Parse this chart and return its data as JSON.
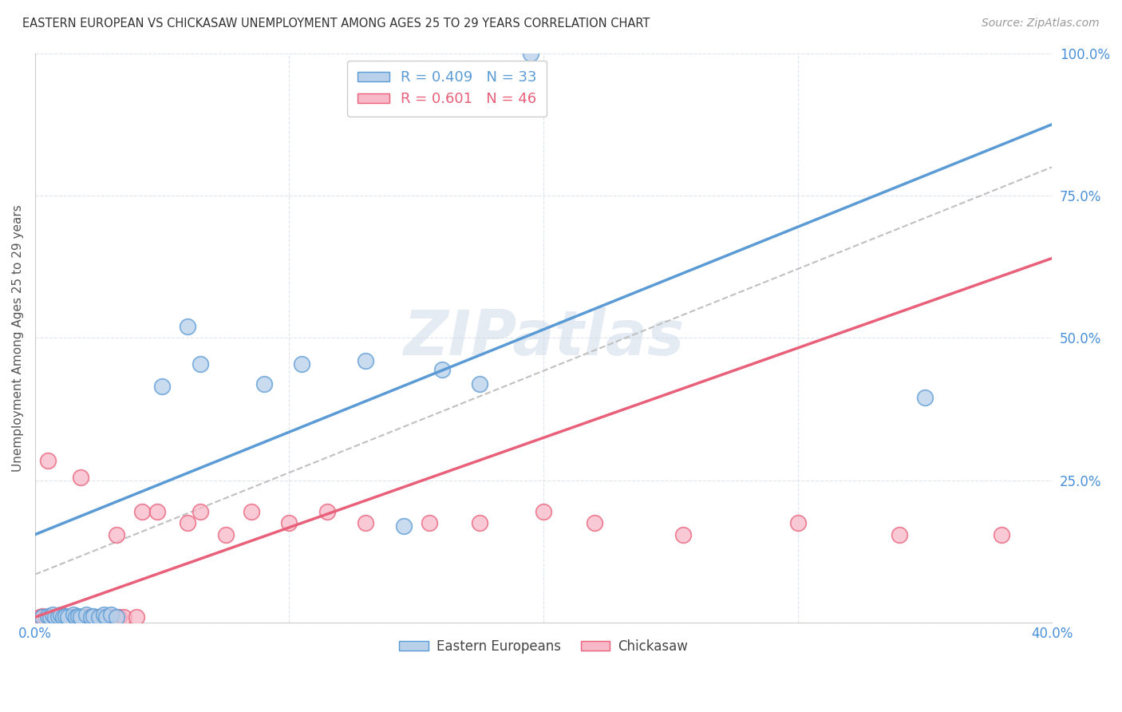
{
  "title": "EASTERN EUROPEAN VS CHICKASAW UNEMPLOYMENT AMONG AGES 25 TO 29 YEARS CORRELATION CHART",
  "source": "Source: ZipAtlas.com",
  "ylabel": "Unemployment Among Ages 25 to 29 years",
  "xlim": [
    0.0,
    0.4
  ],
  "ylim": [
    0.0,
    1.0
  ],
  "xtick_positions": [
    0.0,
    0.1,
    0.2,
    0.3,
    0.4
  ],
  "xticklabels": [
    "0.0%",
    "",
    "",
    "",
    "40.0%"
  ],
  "ytick_positions": [
    0.0,
    0.25,
    0.5,
    0.75,
    1.0
  ],
  "yticklabels": [
    "",
    "25.0%",
    "50.0%",
    "75.0%",
    "100.0%"
  ],
  "blue_fill": "#b8d0ea",
  "pink_fill": "#f7b8c8",
  "blue_edge": "#5b9bd5",
  "pink_edge": "#e8607a",
  "dashed_line_color": "#c0c0c0",
  "legend_blue_R": "0.409",
  "legend_blue_N": "33",
  "legend_pink_R": "0.601",
  "legend_pink_N": "46",
  "watermark": "ZIPatlas",
  "blue_scatter_x": [
    0.003,
    0.005,
    0.006,
    0.007,
    0.008,
    0.009,
    0.01,
    0.011,
    0.012,
    0.013,
    0.015,
    0.016,
    0.017,
    0.018,
    0.02,
    0.022,
    0.023,
    0.025,
    0.027,
    0.028,
    0.03,
    0.032,
    0.05,
    0.06,
    0.065,
    0.09,
    0.105,
    0.13,
    0.145,
    0.16,
    0.175,
    0.195,
    0.35
  ],
  "blue_scatter_y": [
    0.01,
    0.012,
    0.01,
    0.015,
    0.01,
    0.012,
    0.015,
    0.01,
    0.012,
    0.01,
    0.015,
    0.01,
    0.012,
    0.01,
    0.015,
    0.01,
    0.012,
    0.01,
    0.015,
    0.01,
    0.015,
    0.01,
    0.415,
    0.52,
    0.455,
    0.42,
    0.455,
    0.46,
    0.17,
    0.445,
    0.42,
    1.0,
    0.395
  ],
  "pink_scatter_x": [
    0.002,
    0.003,
    0.004,
    0.005,
    0.006,
    0.007,
    0.008,
    0.009,
    0.01,
    0.011,
    0.012,
    0.013,
    0.014,
    0.015,
    0.016,
    0.017,
    0.018,
    0.019,
    0.02,
    0.021,
    0.022,
    0.023,
    0.025,
    0.027,
    0.03,
    0.032,
    0.033,
    0.035,
    0.04,
    0.042,
    0.048,
    0.06,
    0.065,
    0.075,
    0.085,
    0.1,
    0.115,
    0.13,
    0.155,
    0.175,
    0.2,
    0.22,
    0.255,
    0.3,
    0.34,
    0.38
  ],
  "pink_scatter_y": [
    0.01,
    0.012,
    0.01,
    0.285,
    0.01,
    0.01,
    0.01,
    0.01,
    0.01,
    0.01,
    0.01,
    0.01,
    0.01,
    0.01,
    0.01,
    0.01,
    0.255,
    0.01,
    0.01,
    0.01,
    0.01,
    0.01,
    0.01,
    0.01,
    0.01,
    0.155,
    0.01,
    0.01,
    0.01,
    0.195,
    0.195,
    0.175,
    0.195,
    0.155,
    0.195,
    0.175,
    0.195,
    0.175,
    0.175,
    0.175,
    0.195,
    0.175,
    0.155,
    0.175,
    0.155,
    0.155
  ],
  "blue_line_x": [
    0.0,
    0.4
  ],
  "blue_line_y": [
    0.155,
    0.875
  ],
  "pink_line_x": [
    0.0,
    0.4
  ],
  "pink_line_y": [
    0.01,
    0.64
  ],
  "dashed_line_x": [
    0.0,
    0.4
  ],
  "dashed_line_y": [
    0.085,
    0.8
  ],
  "figwidth": 14.06,
  "figheight": 8.92,
  "dpi": 100
}
